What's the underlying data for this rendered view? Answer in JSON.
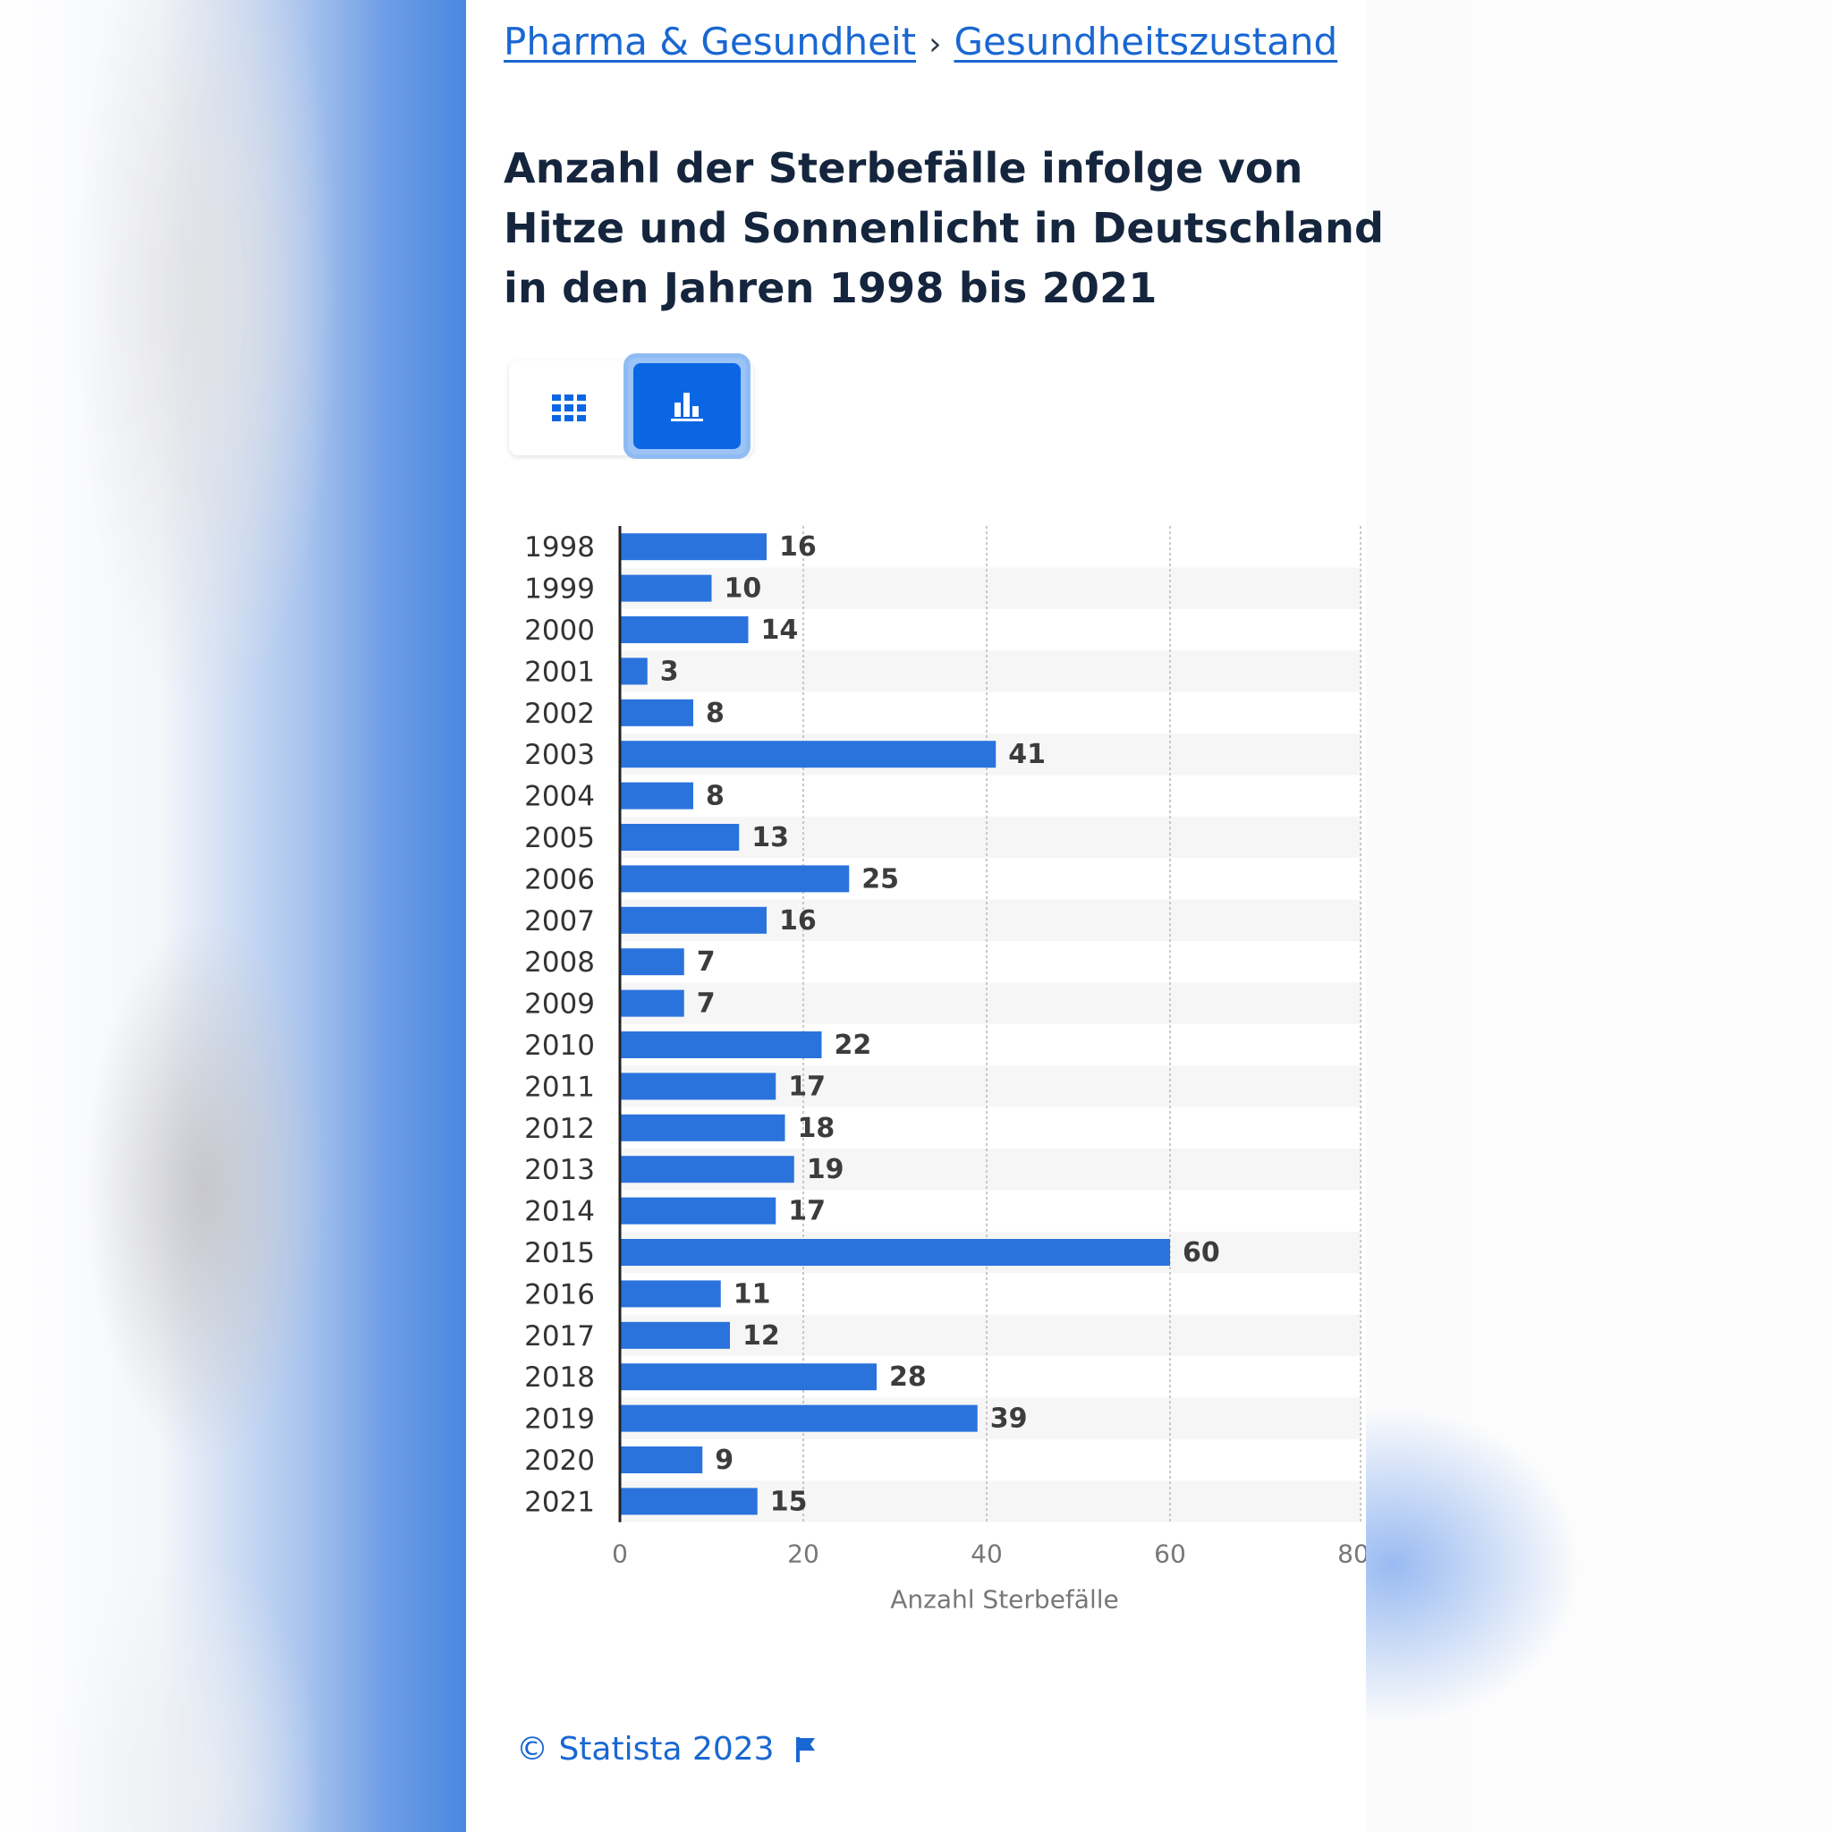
{
  "breadcrumb": {
    "items": [
      "Pharma & Gesundheit",
      "Gesundheitszustand"
    ],
    "separator": "›"
  },
  "title": "Anzahl der Sterbefälle infolge von Hitze und Sonnenlicht in Deutschland in den Jahren 1998 bis 2021",
  "view_toggle": {
    "table_icon": "grid-table-icon",
    "chart_icon": "bar-chart-icon",
    "active": "chart"
  },
  "colors": {
    "bar": "#2a73dc",
    "link": "#1967d2",
    "title": "#14253d",
    "toggle_active": "#0b66e4"
  },
  "chart_data": {
    "type": "bar",
    "orientation": "horizontal",
    "categories": [
      "1998",
      "1999",
      "2000",
      "2001",
      "2002",
      "2003",
      "2004",
      "2005",
      "2006",
      "2007",
      "2008",
      "2009",
      "2010",
      "2011",
      "2012",
      "2013",
      "2014",
      "2015",
      "2016",
      "2017",
      "2018",
      "2019",
      "2020",
      "2021"
    ],
    "values": [
      16,
      10,
      14,
      3,
      8,
      41,
      8,
      13,
      25,
      16,
      7,
      7,
      22,
      17,
      18,
      19,
      17,
      60,
      11,
      12,
      28,
      39,
      9,
      15
    ],
    "xlabel": "Anzahl Sterbefälle",
    "ylabel": "",
    "xlim": [
      0,
      80
    ],
    "xticks": [
      0,
      20,
      40,
      60,
      80
    ],
    "grid": true,
    "data_labels": true
  },
  "footer": {
    "copyright": "© Statista 2023",
    "flag_icon": "flag-icon"
  }
}
